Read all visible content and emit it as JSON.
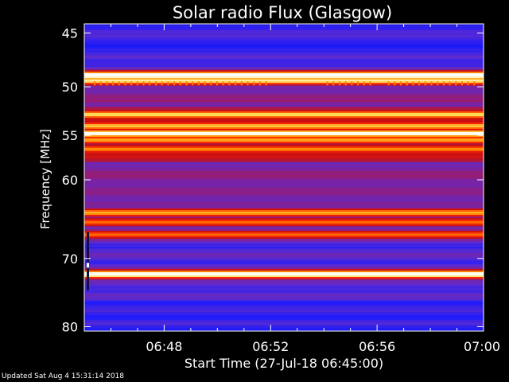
{
  "chart_data": {
    "type": "heatmap",
    "title": "Solar radio Flux (Glasgow)",
    "xlabel": "Start Time (27-Jul-18 06:45:00)",
    "ylabel": "Frequency [MHz]",
    "x_range_minutes": [
      0,
      15
    ],
    "x_ticks": [
      {
        "minute": 3,
        "label": "06:48"
      },
      {
        "minute": 7,
        "label": "06:52"
      },
      {
        "minute": 11,
        "label": "06:56"
      },
      {
        "minute": 15,
        "label": "07:00"
      }
    ],
    "ylim": [
      44.2,
      80.7
    ],
    "y_inverted": true,
    "y_ticks": [
      45,
      50,
      55,
      60,
      70,
      80
    ],
    "y_scale": "log",
    "colormap": [
      "#000000",
      "#1a1aff",
      "#5a2bd0",
      "#8a1f8a",
      "#c81010",
      "#ff2000",
      "#ff8c00",
      "#ffe060",
      "#ffffff"
    ],
    "bright_bands_mhz": [
      {
        "freq": 48.9,
        "intensity": 1.0
      },
      {
        "freq": 49.4,
        "intensity": 0.8
      },
      {
        "freq": 52.8,
        "intensity": 0.75
      },
      {
        "freq": 54.0,
        "intensity": 0.7
      },
      {
        "freq": 54.8,
        "intensity": 0.9
      },
      {
        "freq": 55.5,
        "intensity": 0.65
      },
      {
        "freq": 56.5,
        "intensity": 0.6
      },
      {
        "freq": 64.0,
        "intensity": 0.65
      },
      {
        "freq": 65.2,
        "intensity": 0.55
      },
      {
        "freq": 66.8,
        "intensity": 0.55
      },
      {
        "freq": 72.2,
        "intensity": 0.95
      }
    ]
  },
  "footer": {
    "updated": "Updated Sat Aug  4 15:31:14 2018"
  }
}
